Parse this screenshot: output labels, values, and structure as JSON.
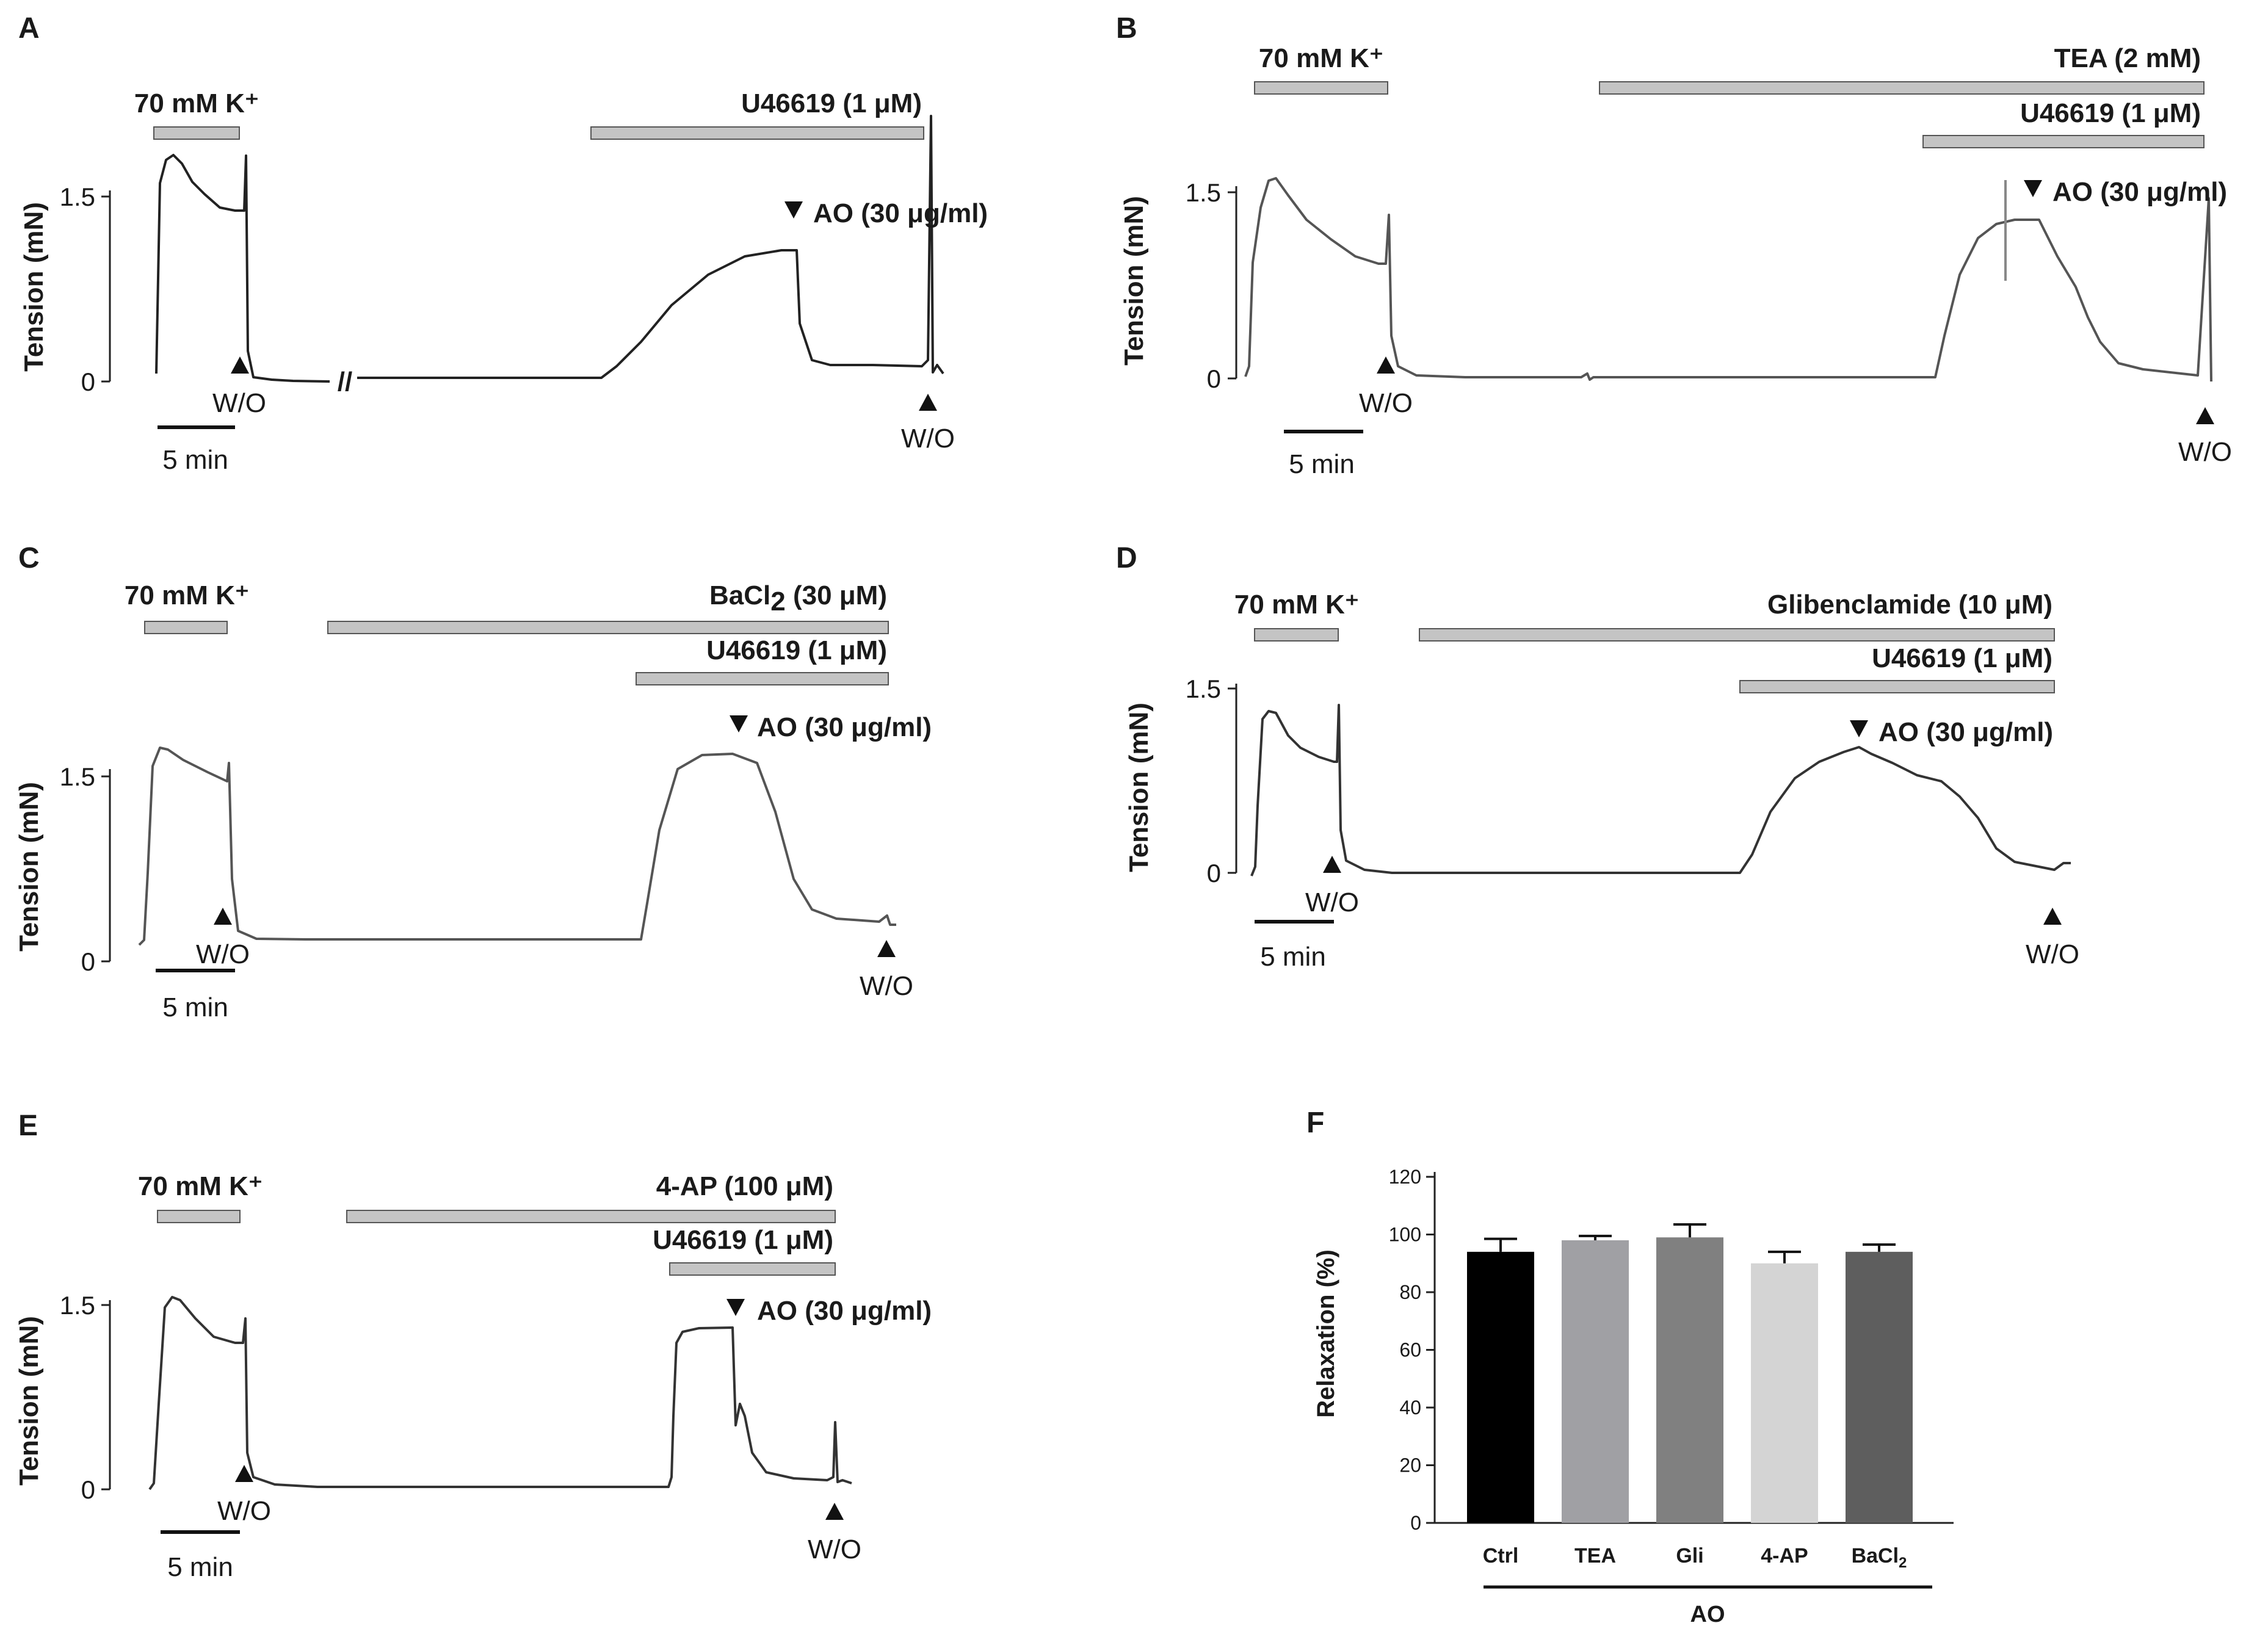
{
  "panels": {
    "A": {
      "label": "A",
      "k_label": "70 mM K⁺",
      "drug1_label": "U46619 (1 μM)",
      "ylabel": "Tension (mN)",
      "y_tick_top": "1.5",
      "y_tick_zero": "0",
      "ao_label": "AO (30 μg/ml)",
      "wo1": "W/O",
      "wo2": "W/O",
      "scale_label": "5 min",
      "break_mark": "//"
    },
    "B": {
      "label": "B",
      "k_label": "70 mM K⁺",
      "drug1_label": "TEA (2 mM)",
      "drug2_label": "U46619 (1 μM)",
      "ylabel": "Tension (mN)",
      "y_tick_top": "1.5",
      "y_tick_zero": "0",
      "ao_label": "AO (30 μg/ml)",
      "wo1": "W/O",
      "wo2": "W/O",
      "scale_label": "5 min"
    },
    "C": {
      "label": "C",
      "k_label": "70 mM K⁺",
      "drug1_label_base": "BaCl",
      "drug1_label_sub": "2",
      "drug1_label_tail": " (30 μM)",
      "drug2_label": "U46619 (1 μM)",
      "ylabel": "Tension (mN)",
      "y_tick_top": "1.5",
      "y_tick_zero": "0",
      "ao_label": "AO (30 μg/ml)",
      "wo1": "W/O",
      "wo2": "W/O",
      "scale_label": "5 min"
    },
    "D": {
      "label": "D",
      "k_label": "70 mM K⁺",
      "drug1_label": "Glibenclamide (10 μM)",
      "drug2_label": "U46619 (1 μM)",
      "ylabel": "Tension (mN)",
      "y_tick_top": "1.5",
      "y_tick_zero": "0",
      "ao_label": "AO (30 μg/ml)",
      "wo1": "W/O",
      "wo2": "W/O",
      "scale_label": "5 min"
    },
    "E": {
      "label": "E",
      "k_label": "70 mM K⁺",
      "drug1_label": "4-AP (100 μM)",
      "drug2_label": "U46619 (1 μM)",
      "ylabel": "Tension (mN)",
      "y_tick_top": "1.5",
      "y_tick_zero": "0",
      "ao_label": "AO (30 μg/ml)",
      "wo1": "W/O",
      "wo2": "W/O",
      "scale_label": "5 min"
    },
    "F": {
      "label": "F"
    }
  },
  "chart_data": {
    "type": "bar",
    "title": "",
    "categories": [
      "Ctrl",
      "TEA",
      "Gli",
      "4-AP",
      "BaCl2"
    ],
    "category_display": [
      {
        "base": "Ctrl",
        "sub": ""
      },
      {
        "base": "TEA",
        "sub": ""
      },
      {
        "base": "Gli",
        "sub": ""
      },
      {
        "base": "4-AP",
        "sub": ""
      },
      {
        "base": "BaCl",
        "sub": "2"
      }
    ],
    "values": [
      94,
      98,
      99,
      90,
      94
    ],
    "errors": [
      4.5,
      1.5,
      4.5,
      4,
      2.5
    ],
    "colors": [
      "#000000",
      "#a0a0a4",
      "#808080",
      "#d4d4d4",
      "#5e5e5e"
    ],
    "ylabel": "Relaxation (%)",
    "xlabel": "",
    "group_label": "AO",
    "ylim": [
      0,
      120
    ],
    "yticks": [
      0,
      20,
      40,
      60,
      80,
      100,
      120
    ]
  }
}
